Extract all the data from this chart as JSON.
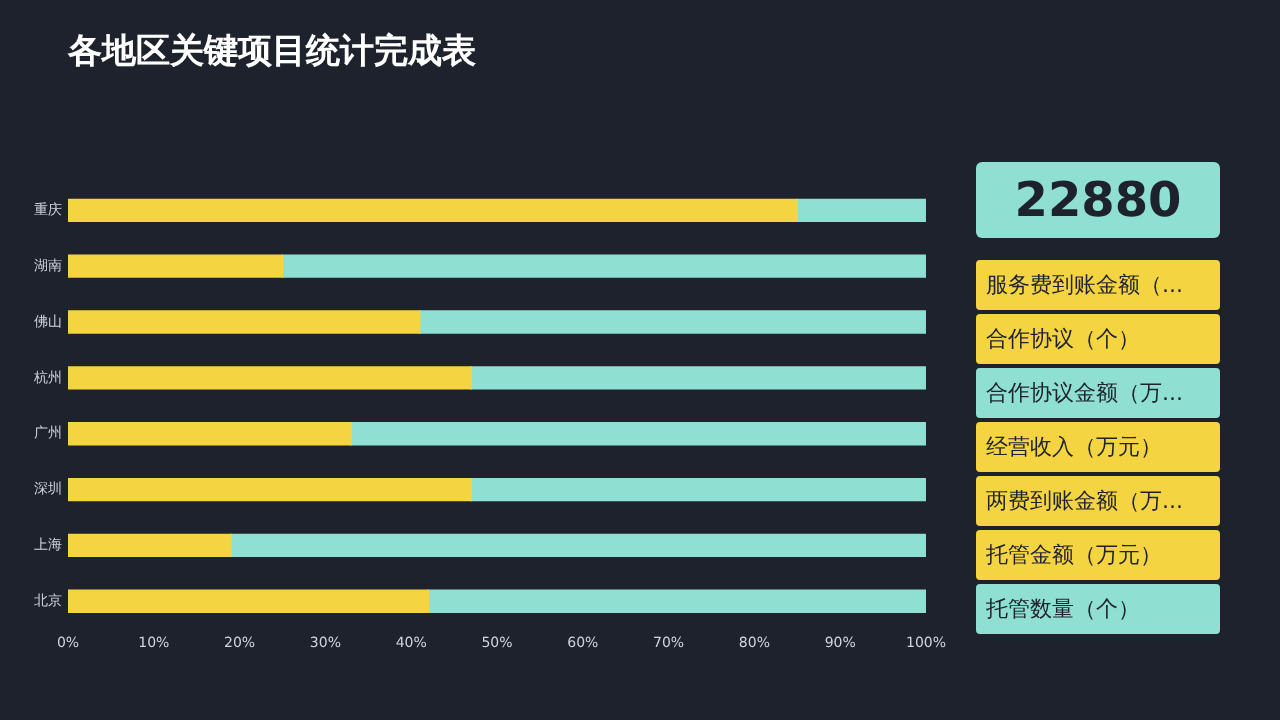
{
  "chart_data": [
    {
      "type": "bar",
      "title": "各地区关键项目统计完成表",
      "orientation": "horizontal",
      "stacked": true,
      "categories": [
        "重庆",
        "湖南",
        "佛山",
        "杭州",
        "广州",
        "深圳",
        "上海",
        "北京"
      ],
      "series": [
        {
          "color": "#f5d442",
          "values": [
            85,
            25,
            41,
            47,
            33,
            47,
            19,
            42
          ]
        },
        {
          "color": "#8fdfd2",
          "values": [
            15,
            75,
            59,
            53,
            67,
            53,
            81,
            58
          ]
        }
      ],
      "xlim": [
        0,
        100
      ],
      "xticks": [
        {
          "value": 0,
          "label": "0%"
        },
        {
          "value": 10,
          "label": "10%"
        },
        {
          "value": 20,
          "label": "20%"
        },
        {
          "value": 30,
          "label": "30%"
        },
        {
          "value": 40,
          "label": "40%"
        },
        {
          "value": 50,
          "label": "50%"
        },
        {
          "value": 60,
          "label": "60%"
        },
        {
          "value": 70,
          "label": "70%"
        },
        {
          "value": 80,
          "label": "80%"
        },
        {
          "value": 90,
          "label": "90%"
        },
        {
          "value": 100,
          "label": "100%"
        }
      ],
      "grid": false,
      "legend": false
    },
    {
      "type": "other",
      "title": "22880",
      "annotations": [
        "服务费到账金额（...",
        "合作协议（个）",
        "合作协议金额（万...",
        "经营收入（万元）",
        "两费到账金额（万...",
        "托管金额（万元）",
        "托管数量（个）"
      ]
    }
  ]
}
